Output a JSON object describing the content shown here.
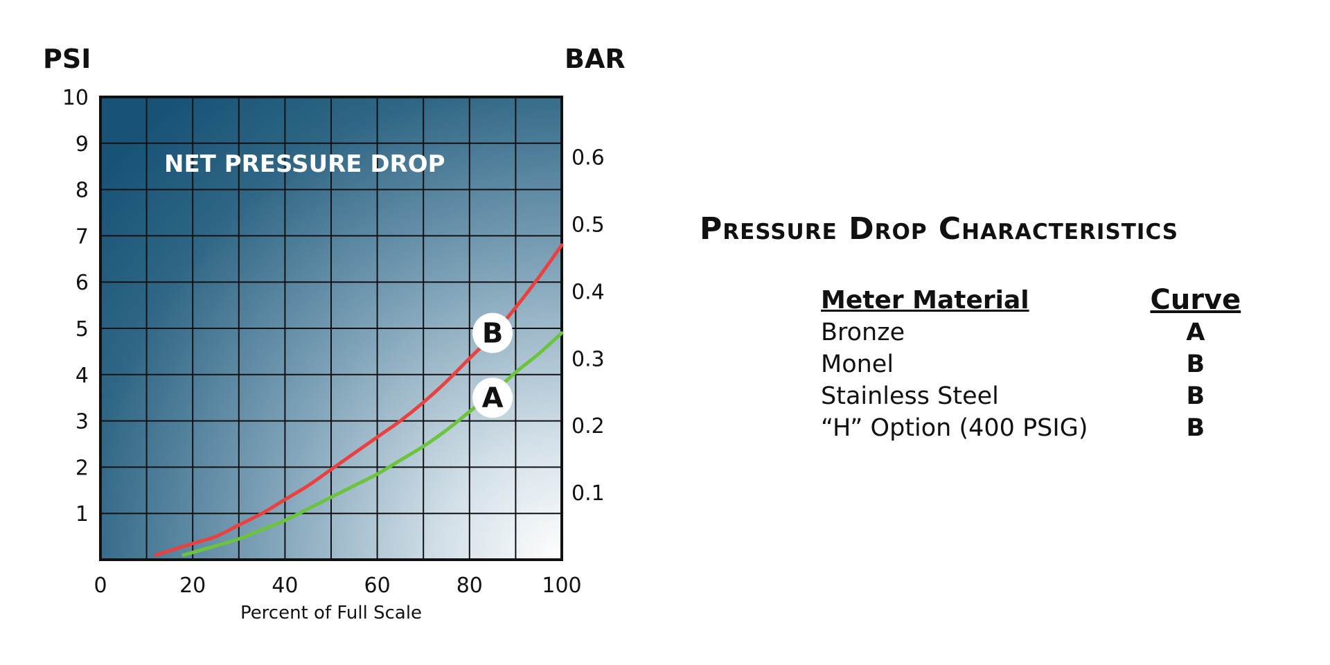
{
  "chart_data": {
    "type": "line",
    "title": "NET PRESSURE DROP",
    "xlabel": "Percent of Full Scale",
    "ylabel_left": "PSI",
    "ylabel_right": "BAR",
    "xlim": [
      0,
      100
    ],
    "ylim": [
      0,
      10
    ],
    "x_ticks": [
      "0",
      "20",
      "40",
      "60",
      "80",
      "100"
    ],
    "y_ticks": [
      "1",
      "2",
      "3",
      "4",
      "5",
      "6",
      "7",
      "8",
      "9",
      "10"
    ],
    "y2_ticks": [
      {
        "label": "0.1",
        "value": 0.1
      },
      {
        "label": "0.2",
        "value": 0.2
      },
      {
        "label": "0.3",
        "value": 0.3
      },
      {
        "label": "0.4",
        "value": 0.4
      },
      {
        "label": "0.5",
        "value": 0.5
      },
      {
        "label": "0.6",
        "value": 0.6
      }
    ],
    "psi_per_bar": 14.5038,
    "grid": true,
    "series": [
      {
        "name": "A",
        "color": "#6cc43c",
        "x": [
          18,
          25,
          30,
          35,
          40,
          45,
          50,
          55,
          60,
          65,
          70,
          75,
          80,
          85,
          90,
          95,
          100
        ],
        "y": [
          0.1,
          0.3,
          0.45,
          0.65,
          0.85,
          1.1,
          1.35,
          1.6,
          1.85,
          2.15,
          2.45,
          2.8,
          3.2,
          3.6,
          4.05,
          4.45,
          4.9
        ]
      },
      {
        "name": "B",
        "color": "#e94040",
        "x": [
          12,
          20,
          25,
          30,
          35,
          40,
          45,
          50,
          55,
          60,
          65,
          70,
          75,
          80,
          85,
          90,
          95,
          100
        ],
        "y": [
          0.1,
          0.35,
          0.5,
          0.75,
          1.0,
          1.3,
          1.6,
          1.95,
          2.3,
          2.65,
          3.0,
          3.4,
          3.85,
          4.35,
          4.85,
          5.45,
          6.1,
          6.8
        ]
      }
    ],
    "annotations": [
      {
        "text": "B",
        "x": 85,
        "y": 4.9
      },
      {
        "text": "A",
        "x": 85,
        "y": 3.5
      }
    ]
  },
  "side": {
    "title": "Pressure Drop Characteristics",
    "col_material": "Meter Material",
    "col_curve": "Curve",
    "rows": [
      {
        "material": "Bronze",
        "curve": "A"
      },
      {
        "material": "Monel",
        "curve": "B"
      },
      {
        "material": "Stainless Steel",
        "curve": "B"
      },
      {
        "material": "“H” Option (400 PSIG)",
        "curve": "B"
      }
    ]
  }
}
